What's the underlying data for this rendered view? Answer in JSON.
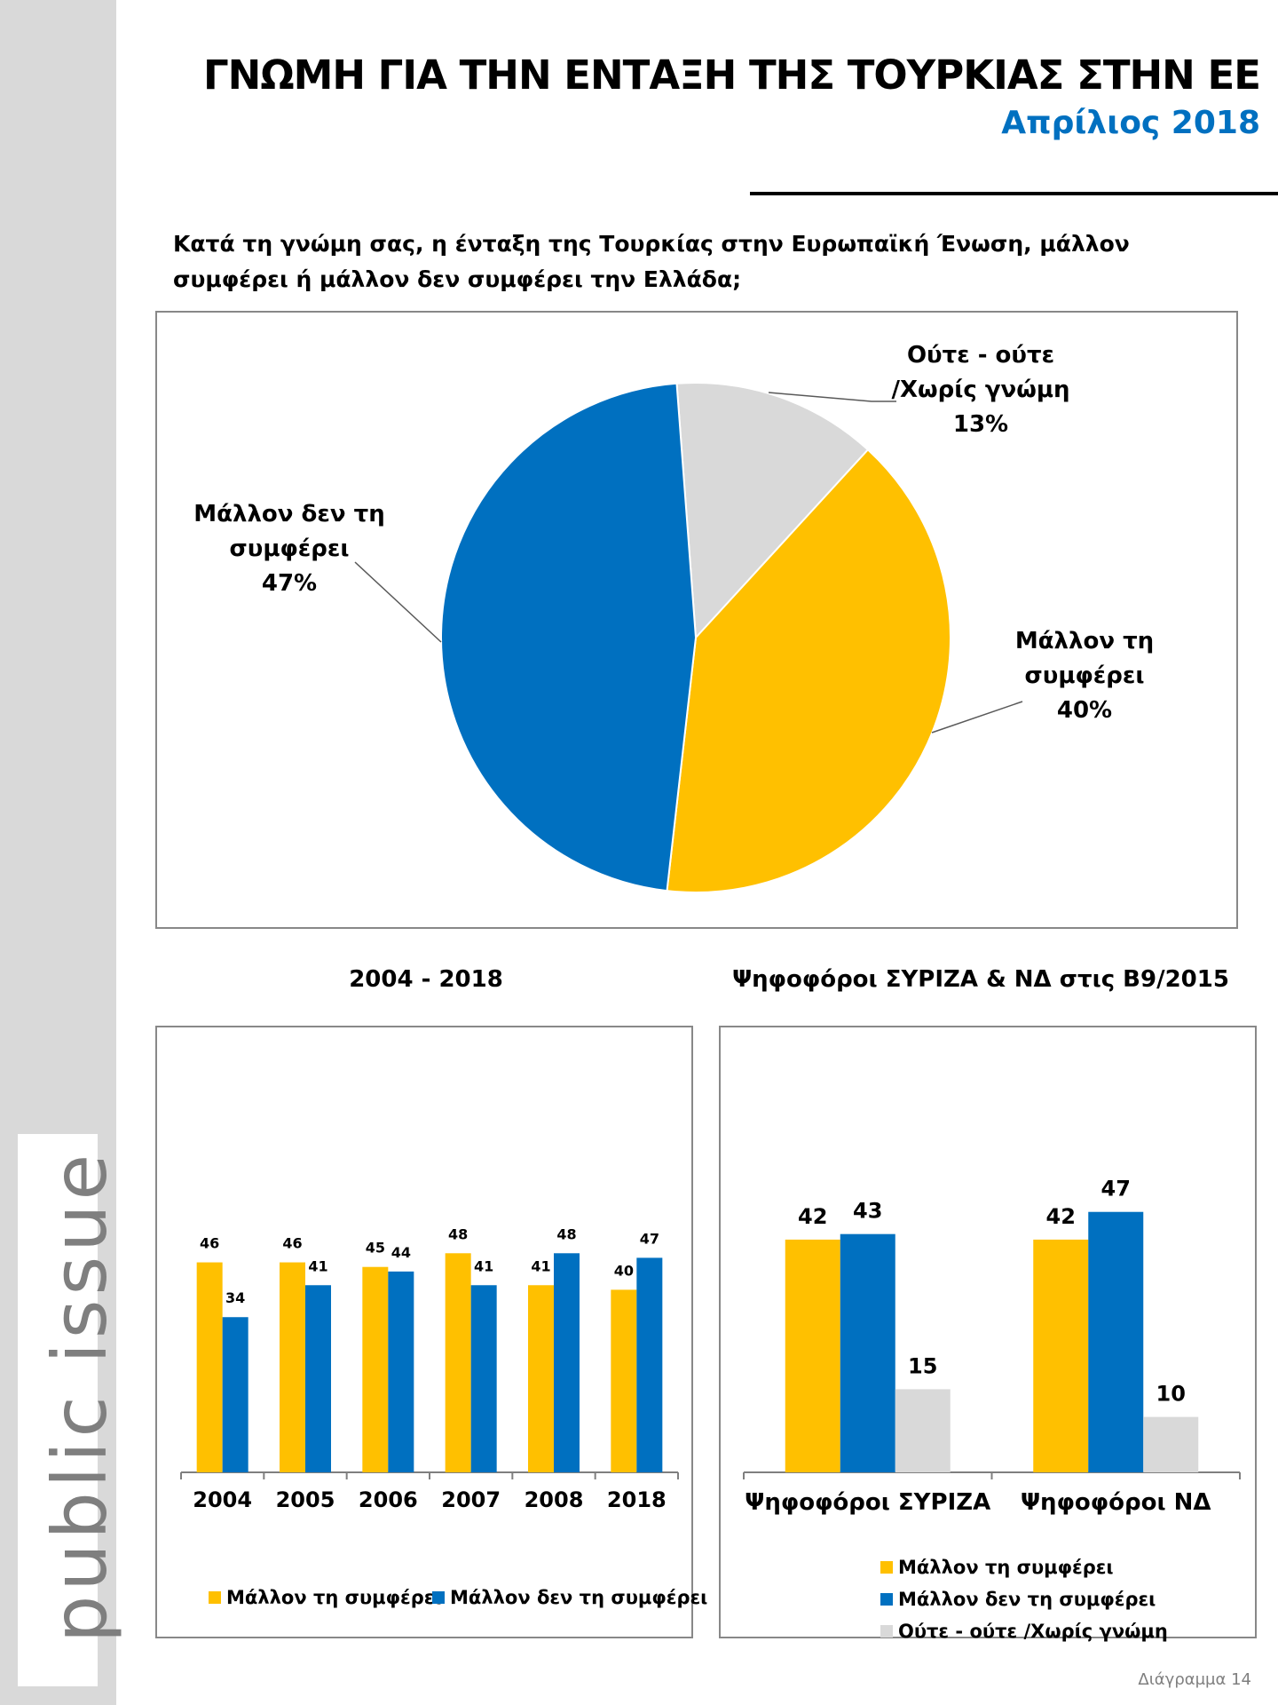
{
  "brand": "public issue",
  "header": {
    "title": "ΓΝΩΜΗ ΓΙΑ ΤΗΝ ΕΝΤΑΞΗ ΤΗΣ ΤΟΥΡΚΙΑΣ ΣΤΗΝ ΕΕ",
    "subtitle": "Απρίλιος 2018",
    "question": "Κατά τη γνώμη σας, η ένταξη της Τουρκίας στην Ευρωπαϊκή Ένωση, μάλλον συμφέρει ή μάλλον δεν συμφέρει την Ελλάδα;"
  },
  "colors": {
    "yellow": "#ffc000",
    "blue": "#0070c0",
    "grey": "#d9d9d9"
  },
  "footer": "Διάγραμμα 14",
  "chart_data": [
    {
      "type": "pie",
      "slices": [
        {
          "label_lines": [
            "Ούτε - ούτε",
            "/Χωρίς γνώμη"
          ],
          "value_label": "13%",
          "value": 13,
          "color": "#d9d9d9"
        },
        {
          "label_lines": [
            "Μάλλον τη",
            "συμφέρει"
          ],
          "value_label": "40%",
          "value": 40,
          "color": "#ffc000"
        },
        {
          "label_lines": [
            "Μάλλον δεν τη",
            "συμφέρει"
          ],
          "value_label": "47%",
          "value": 47,
          "color": "#0070c0"
        }
      ]
    },
    {
      "type": "bar",
      "title": "2004 - 2018",
      "categories": [
        "2004",
        "2005",
        "2006",
        "2007",
        "2008",
        "2018"
      ],
      "series": [
        {
          "name": "Μάλλον τη συμφέρει",
          "color": "#ffc000",
          "values": [
            46,
            46,
            45,
            48,
            41,
            40
          ]
        },
        {
          "name": "Μάλλον δεν τη συμφέρει",
          "color": "#0070c0",
          "values": [
            34,
            41,
            44,
            41,
            48,
            47
          ]
        }
      ],
      "ylim": [
        0,
        56
      ],
      "legend": "bottom"
    },
    {
      "type": "bar",
      "title": "Ψηφοφόροι ΣΥΡΙΖΑ & ΝΔ στις Β9/2015",
      "categories": [
        "Ψηφοφόροι ΣΥΡΙΖΑ",
        "Ψηφοφόροι ΝΔ"
      ],
      "series": [
        {
          "name": "Μάλλον τη συμφέρει",
          "color": "#ffc000",
          "values": [
            42,
            42
          ]
        },
        {
          "name": "Μάλλον δεν τη συμφέρει",
          "color": "#0070c0",
          "values": [
            43,
            47
          ]
        },
        {
          "name": "Ούτε - ούτε /Χωρίς γνώμη",
          "color": "#d9d9d9",
          "values": [
            15,
            10
          ]
        }
      ],
      "ylim": [
        0,
        56
      ],
      "legend": "bottom"
    }
  ]
}
